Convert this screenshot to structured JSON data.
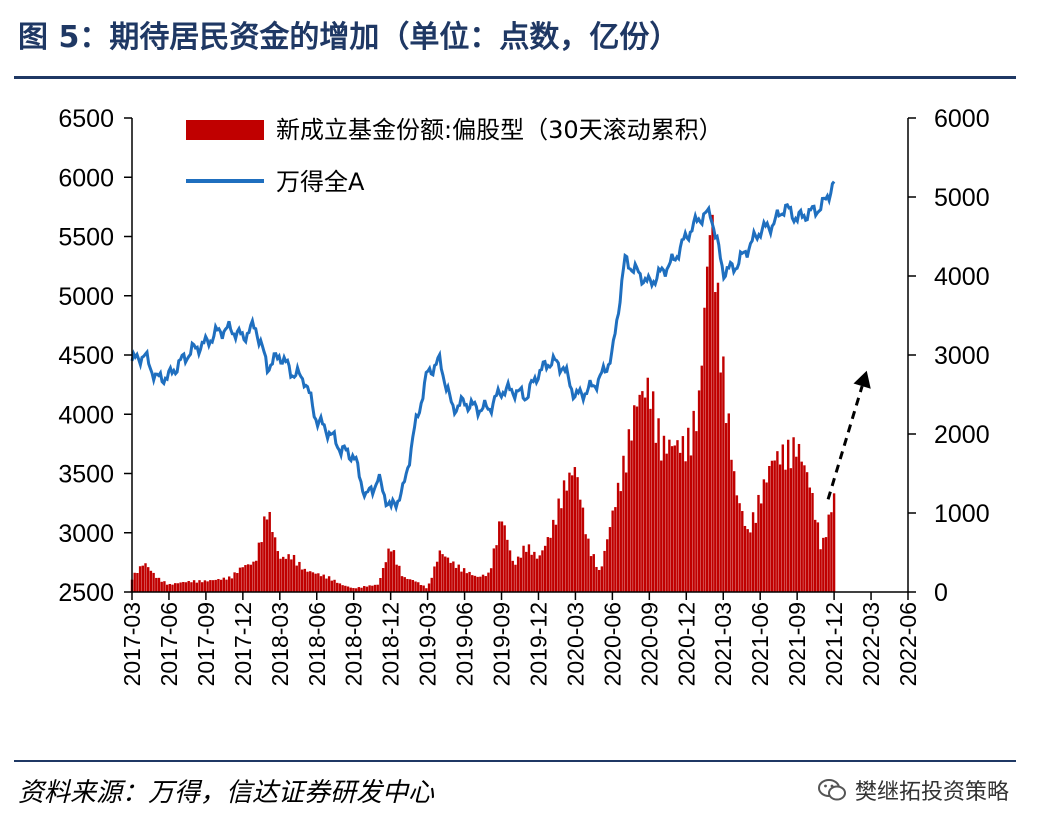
{
  "title": "图 5：期待居民资金的增加（单位：点数，亿份）",
  "source": "资料来源：万得，信达证券研发中心",
  "watermark": {
    "text": "樊继拓投资策略",
    "icon": "wechat-icon"
  },
  "chart_data": {
    "type": "bar+line",
    "legend_position": "top-left",
    "x_ticks": [
      "2017-03",
      "2017-06",
      "2017-09",
      "2017-12",
      "2018-03",
      "2018-06",
      "2018-09",
      "2018-12",
      "2019-03",
      "2019-06",
      "2019-09",
      "2019-12",
      "2020-03",
      "2020-06",
      "2020-09",
      "2020-12",
      "2021-03",
      "2021-06",
      "2021-09",
      "2021-12",
      "2022-03",
      "2022-06"
    ],
    "x_range": [
      "2017-03",
      "2022-06"
    ],
    "y_left": {
      "min": 2500,
      "max": 6500,
      "ticks": [
        2500,
        3000,
        3500,
        4000,
        4500,
        5000,
        5500,
        6000,
        6500
      ]
    },
    "y_right": {
      "min": 0,
      "max": 6000,
      "ticks": [
        0,
        1000,
        2000,
        3000,
        4000,
        5000,
        6000
      ]
    },
    "bar_series": {
      "name": "新成立基金份额:偏股型（30天滚动累积）",
      "axis": "right",
      "color": "#c00000",
      "points": [
        [
          "2017-03",
          200
        ],
        [
          "2017-04",
          400
        ],
        [
          "2017-05",
          200
        ],
        [
          "2017-06",
          100
        ],
        [
          "2017-07",
          130
        ],
        [
          "2017-08",
          150
        ],
        [
          "2017-09",
          150
        ],
        [
          "2017-10",
          170
        ],
        [
          "2017-11",
          200
        ],
        [
          "2017-12",
          350
        ],
        [
          "2018-01",
          400
        ],
        [
          "2018-02",
          1150
        ],
        [
          "2018-03",
          450
        ],
        [
          "2018-04",
          500
        ],
        [
          "2018-05",
          300
        ],
        [
          "2018-06",
          250
        ],
        [
          "2018-07",
          200
        ],
        [
          "2018-08",
          100
        ],
        [
          "2018-09",
          50
        ],
        [
          "2018-10",
          80
        ],
        [
          "2018-11",
          100
        ],
        [
          "2018-12",
          650
        ],
        [
          "2019-01",
          200
        ],
        [
          "2019-02",
          150
        ],
        [
          "2019-03",
          50
        ],
        [
          "2019-04",
          550
        ],
        [
          "2019-05",
          400
        ],
        [
          "2019-06",
          300
        ],
        [
          "2019-07",
          200
        ],
        [
          "2019-08",
          250
        ],
        [
          "2019-09",
          1050
        ],
        [
          "2019-10",
          350
        ],
        [
          "2019-11",
          650
        ],
        [
          "2019-12",
          450
        ],
        [
          "2020-01",
          800
        ],
        [
          "2020-02",
          1400
        ],
        [
          "2020-03",
          1700
        ],
        [
          "2020-04",
          700
        ],
        [
          "2020-05",
          250
        ],
        [
          "2020-06",
          1050
        ],
        [
          "2020-07",
          1800
        ],
        [
          "2020-08",
          2600
        ],
        [
          "2020-09",
          2800
        ],
        [
          "2020-10",
          2000
        ],
        [
          "2020-11",
          2000
        ],
        [
          "2020-12",
          2000
        ],
        [
          "2021-01",
          2500
        ],
        [
          "2021-02",
          5200
        ],
        [
          "2021-03",
          3000
        ],
        [
          "2021-04",
          1400
        ],
        [
          "2021-05",
          800
        ],
        [
          "2021-06",
          1300
        ],
        [
          "2021-07",
          1800
        ],
        [
          "2021-08",
          1900
        ],
        [
          "2021-09",
          2000
        ],
        [
          "2021-10",
          1500
        ],
        [
          "2021-11",
          600
        ],
        [
          "2021-12",
          1300
        ]
      ]
    },
    "line_series": {
      "name": "万得全A",
      "axis": "left",
      "color": "#1f6fbf",
      "points": [
        [
          "2017-03",
          4450
        ],
        [
          "2017-04",
          4500
        ],
        [
          "2017-05",
          4300
        ],
        [
          "2017-06",
          4320
        ],
        [
          "2017-07",
          4450
        ],
        [
          "2017-08",
          4550
        ],
        [
          "2017-09",
          4600
        ],
        [
          "2017-10",
          4700
        ],
        [
          "2017-11",
          4720
        ],
        [
          "2017-12",
          4650
        ],
        [
          "2018-01",
          4750
        ],
        [
          "2018-02",
          4400
        ],
        [
          "2018-03",
          4500
        ],
        [
          "2018-04",
          4350
        ],
        [
          "2018-05",
          4300
        ],
        [
          "2018-06",
          3950
        ],
        [
          "2018-07",
          3850
        ],
        [
          "2018-08",
          3700
        ],
        [
          "2018-09",
          3650
        ],
        [
          "2018-10",
          3300
        ],
        [
          "2018-11",
          3450
        ],
        [
          "2018-12",
          3200
        ],
        [
          "2019-01",
          3350
        ],
        [
          "2019-02",
          3900
        ],
        [
          "2019-03",
          4350
        ],
        [
          "2019-04",
          4450
        ],
        [
          "2019-05",
          4050
        ],
        [
          "2019-06",
          4100
        ],
        [
          "2019-07",
          4050
        ],
        [
          "2019-08",
          4050
        ],
        [
          "2019-09",
          4200
        ],
        [
          "2019-10",
          4200
        ],
        [
          "2019-11",
          4150
        ],
        [
          "2019-12",
          4350
        ],
        [
          "2020-01",
          4450
        ],
        [
          "2020-02",
          4400
        ],
        [
          "2020-03",
          4150
        ],
        [
          "2020-04",
          4200
        ],
        [
          "2020-05",
          4300
        ],
        [
          "2020-06",
          4500
        ],
        [
          "2020-07",
          5300
        ],
        [
          "2020-08",
          5200
        ],
        [
          "2020-09",
          5100
        ],
        [
          "2020-10",
          5200
        ],
        [
          "2020-11",
          5300
        ],
        [
          "2020-12",
          5500
        ],
        [
          "2021-01",
          5650
        ],
        [
          "2021-02",
          5700
        ],
        [
          "2021-03",
          5200
        ],
        [
          "2021-04",
          5250
        ],
        [
          "2021-05",
          5400
        ],
        [
          "2021-06",
          5550
        ],
        [
          "2021-07",
          5600
        ],
        [
          "2021-08",
          5750
        ],
        [
          "2021-09",
          5650
        ],
        [
          "2021-10",
          5700
        ],
        [
          "2021-11",
          5750
        ],
        [
          "2021-12",
          5950
        ]
      ]
    },
    "annotation": {
      "type": "dashed-arrow",
      "from": [
        "2021-12",
        1300
      ],
      "to": [
        "2022-02",
        2800
      ],
      "axis": "right"
    }
  }
}
